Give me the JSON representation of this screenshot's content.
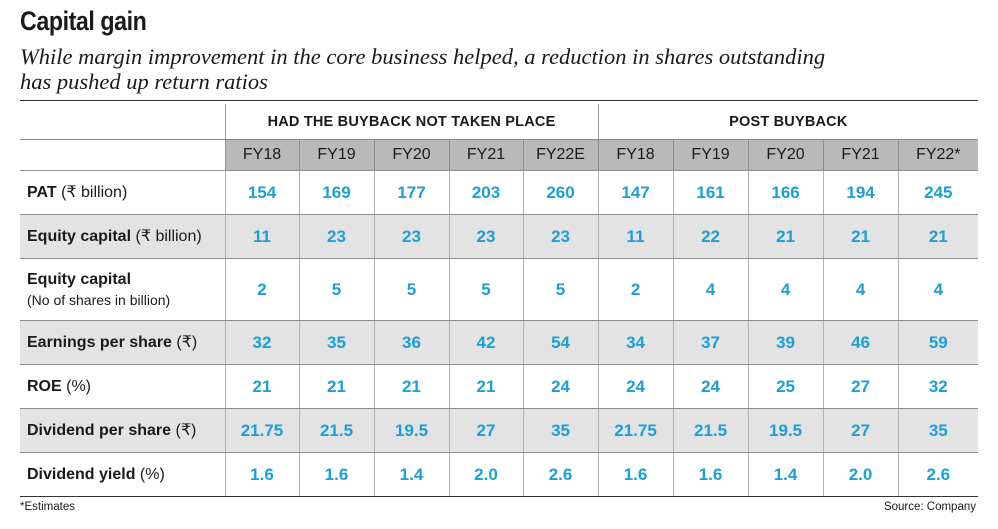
{
  "header": {
    "title": "Capital gain",
    "subtitle_lines": [
      "While margin improvement in the core business helped, a reduction in shares outstanding",
      "has pushed up return ratios"
    ]
  },
  "table": {
    "groups": [
      "HAD THE BUYBACK NOT TAKEN PLACE",
      "POST BUYBACK"
    ],
    "years": [
      "FY18",
      "FY19",
      "FY20",
      "FY21",
      "FY22E",
      "FY18",
      "FY19",
      "FY20",
      "FY21",
      "FY22*"
    ],
    "rows": [
      {
        "label": "PAT",
        "unit": "(₹ billion)",
        "values": [
          "154",
          "169",
          "177",
          "203",
          "260",
          "147",
          "161",
          "166",
          "194",
          "245"
        ]
      },
      {
        "label": "Equity capital",
        "unit": "(₹ billion)",
        "values": [
          "11",
          "23",
          "23",
          "23",
          "23",
          "11",
          "22",
          "21",
          "21",
          "21"
        ]
      },
      {
        "label": "Equity capital",
        "sub": "(No of shares in billion)",
        "values": [
          "2",
          "5",
          "5",
          "5",
          "5",
          "2",
          "4",
          "4",
          "4",
          "4"
        ]
      },
      {
        "label": "Earnings per share",
        "unit": "(₹)",
        "values": [
          "32",
          "35",
          "36",
          "42",
          "54",
          "34",
          "37",
          "39",
          "46",
          "59"
        ]
      },
      {
        "label": "ROE",
        "unit": "(%)",
        "values": [
          "21",
          "21",
          "21",
          "21",
          "24",
          "24",
          "24",
          "25",
          "27",
          "32"
        ]
      },
      {
        "label": "Dividend per share",
        "unit": "(₹)",
        "values": [
          "21.75",
          "21.5",
          "19.5",
          "27",
          "35",
          "21.75",
          "21.5",
          "19.5",
          "27",
          "35"
        ]
      },
      {
        "label": "Dividend yield",
        "unit": "(%)",
        "values": [
          "1.6",
          "1.6",
          "1.4",
          "2.0",
          "2.6",
          "1.6",
          "1.6",
          "1.4",
          "2.0",
          "2.6"
        ]
      }
    ]
  },
  "footer": {
    "note": "*Estimates",
    "source": "Source: Company"
  }
}
